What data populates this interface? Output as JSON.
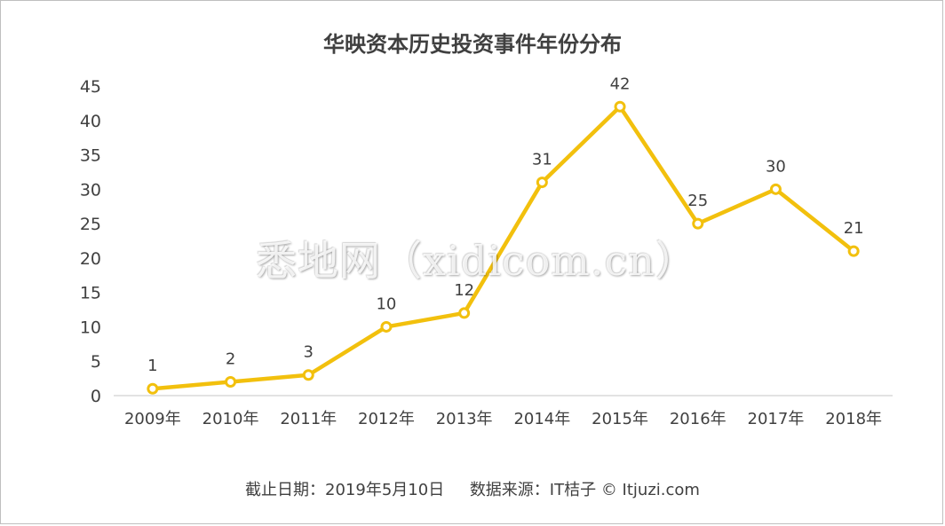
{
  "chart_data": {
    "type": "line",
    "title": "华映资本历史投资事件年份分布",
    "categories": [
      "2009年",
      "2010年",
      "2011年",
      "2012年",
      "2013年",
      "2014年",
      "2015年",
      "2016年",
      "2017年",
      "2018年"
    ],
    "series": [
      {
        "values": [
          1,
          2,
          3,
          10,
          12,
          31,
          42,
          25,
          30,
          21
        ]
      }
    ],
    "ylim": [
      0,
      45
    ],
    "yticks": [
      0,
      5,
      10,
      15,
      20,
      25,
      30,
      35,
      40,
      45
    ],
    "data_labels": true,
    "grid": false,
    "legend": "none",
    "colors": {
      "line": "#f2c00d",
      "text": "#404040",
      "axis": "#d9d9d9"
    }
  },
  "footer": {
    "date_text": "截止日期：2019年5月10日",
    "source_text": "数据来源：IT桔子 © Itjuzi.com"
  },
  "watermark": "悉地网（xidicom.cn）"
}
